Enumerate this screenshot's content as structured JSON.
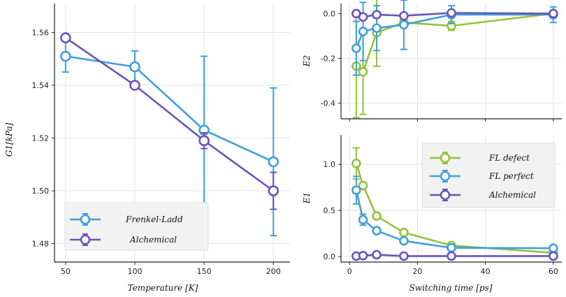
{
  "colors": {
    "blue": "#3f9fdc",
    "purple": "#6b54b8",
    "green": "#93c23a",
    "grid": "#e3e3e3",
    "axis": "#222222"
  },
  "chart_data": [
    {
      "id": "left",
      "type": "line",
      "title": "",
      "xlabel": "Temperature [K]",
      "ylabel": "G1[kPa]",
      "xlim": [
        42,
        212
      ],
      "ylim": [
        1.473,
        1.571
      ],
      "xticks": [
        50,
        100,
        150,
        200
      ],
      "xtick_labels": [
        "50",
        "100",
        "150",
        "200"
      ],
      "yticks": [
        1.48,
        1.5,
        1.52,
        1.54,
        1.56
      ],
      "ytick_labels": [
        "1.48",
        "1.50",
        "1.52",
        "1.54",
        "1.56"
      ],
      "legend": "lower-left",
      "series": [
        {
          "name": "Frenkel-Ladd",
          "color": "blue",
          "x": [
            50,
            100,
            150,
            200
          ],
          "y": [
            1.551,
            1.547,
            1.523,
            1.511
          ],
          "err": [
            0.006,
            0.006,
            0.028,
            0.028
          ]
        },
        {
          "name": "Alchemical",
          "color": "purple",
          "x": [
            50,
            100,
            150,
            200
          ],
          "y": [
            1.558,
            1.54,
            1.519,
            1.5
          ],
          "err": [
            0.001,
            0.001,
            0.003,
            0.007
          ]
        }
      ]
    },
    {
      "id": "top-right",
      "type": "line",
      "title": "",
      "xlabel": "",
      "ylabel": "E2",
      "xlim": [
        -2.5,
        62.5
      ],
      "ylim": [
        -0.47,
        0.045
      ],
      "xticks": [
        0,
        20,
        40,
        60
      ],
      "xtick_labels": [
        "",
        "",
        "",
        ""
      ],
      "yticks": [
        -0.4,
        -0.2,
        0.0
      ],
      "ytick_labels": [
        "-0.4",
        "-0.2",
        "0.0"
      ],
      "series": [
        {
          "name": "FL defect",
          "color": "green",
          "x": [
            2,
            4,
            8,
            16,
            30,
            60
          ],
          "y": [
            -0.235,
            -0.26,
            -0.085,
            -0.04,
            -0.055,
            0.0
          ],
          "err": [
            0.23,
            0.19,
            0.15,
            0.0,
            0.02,
            0.0
          ]
        },
        {
          "name": "FL perfect",
          "color": "blue",
          "x": [
            2,
            4,
            8,
            16,
            30,
            60
          ],
          "y": [
            -0.155,
            -0.08,
            -0.065,
            -0.05,
            -0.005,
            -0.005
          ],
          "err": [
            0.12,
            0.13,
            0.1,
            0.11,
            0.04,
            0.035
          ]
        },
        {
          "name": "Alchemical",
          "color": "purple",
          "x": [
            2,
            4,
            8,
            16,
            30,
            60
          ],
          "y": [
            0.0,
            -0.015,
            -0.005,
            -0.01,
            0.003,
            0.0
          ],
          "err": [
            0.005,
            0.005,
            0.005,
            0.005,
            0.005,
            0.005
          ]
        }
      ]
    },
    {
      "id": "bottom-right",
      "type": "line",
      "title": "",
      "xlabel": "Switching time [ps]",
      "ylabel": "E1",
      "xlim": [
        -2.5,
        62.5
      ],
      "ylim": [
        -0.06,
        1.32
      ],
      "xticks": [
        0,
        20,
        40,
        60
      ],
      "xtick_labels": [
        "0",
        "20",
        "40",
        "60"
      ],
      "yticks": [
        0.0,
        0.5,
        1.0
      ],
      "ytick_labels": [
        "0.0",
        "0.5",
        "1.0"
      ],
      "legend": "top-right",
      "series": [
        {
          "name": "FL defect",
          "color": "green",
          "x": [
            2,
            4,
            8,
            16,
            30,
            60
          ],
          "y": [
            1.01,
            0.77,
            0.44,
            0.26,
            0.12,
            0.04
          ],
          "err": [
            0.17,
            0.03,
            0.02,
            0.01,
            0.01,
            0.005
          ]
        },
        {
          "name": "FL perfect",
          "color": "blue",
          "x": [
            2,
            4,
            8,
            16,
            30,
            60
          ],
          "y": [
            0.72,
            0.4,
            0.28,
            0.17,
            0.095,
            0.09
          ],
          "err": [
            0.15,
            0.06,
            0.03,
            0.02,
            0.01,
            0.01
          ]
        },
        {
          "name": "Alchemical",
          "color": "purple",
          "x": [
            2,
            4,
            8,
            16,
            30,
            60
          ],
          "y": [
            0.005,
            0.01,
            0.02,
            0.005,
            0.005,
            0.005
          ],
          "err": [
            0.005,
            0.005,
            0.005,
            0.005,
            0.005,
            0.005
          ]
        }
      ]
    }
  ],
  "legends": {
    "left": [
      "Frenkel-Ladd",
      "Alchemical"
    ],
    "right": [
      "FL defect",
      "FL perfect",
      "Alchemical"
    ]
  }
}
